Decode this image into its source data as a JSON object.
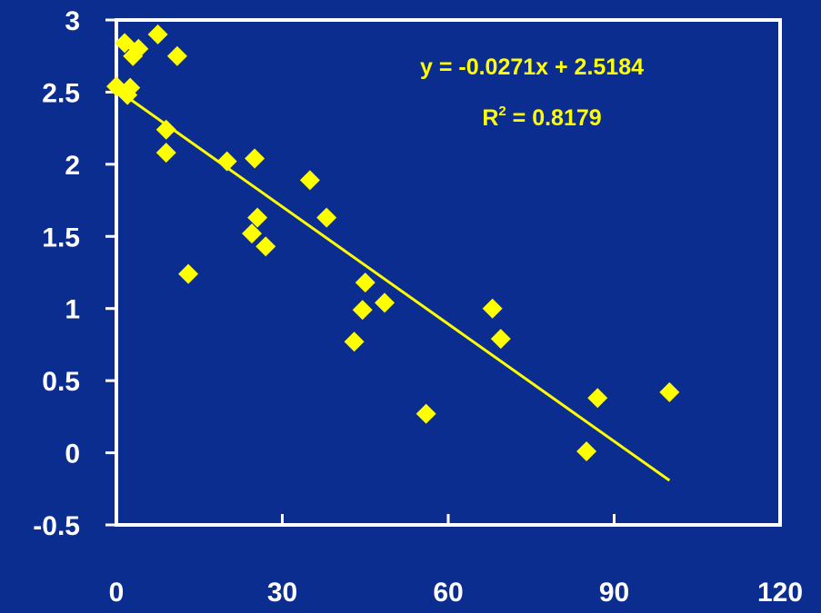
{
  "chart_data": {
    "type": "scatter",
    "title": "",
    "xlabel": "",
    "ylabel": "",
    "xlim": [
      0,
      120
    ],
    "ylim": [
      -0.5,
      3
    ],
    "x_ticks": [
      0,
      30,
      60,
      90,
      120
    ],
    "y_ticks": [
      -0.5,
      0,
      0.5,
      1,
      1.5,
      2,
      2.5,
      3
    ],
    "x_tick_labels": [
      "0",
      "30",
      "60",
      "90",
      "120"
    ],
    "y_tick_labels": [
      "-0.5",
      "0",
      "0.5",
      "1",
      "1.5",
      "2",
      "2.5",
      "3"
    ],
    "grid": false,
    "legend": "none",
    "colors": {
      "background": "#0b2d8f",
      "axes": "#ffffff",
      "points": "#ffff00",
      "trendline": "#ffff00",
      "annotation": "#ffff00",
      "tick_labels": "#ffffff"
    },
    "series": [
      {
        "x": [
          0,
          1.5,
          2,
          2.5,
          3,
          4,
          7.5,
          11,
          13,
          9,
          9,
          20,
          25,
          25.5,
          24.5,
          27,
          35,
          38,
          45,
          43,
          44.5,
          48.5,
          56,
          68,
          69.5,
          85,
          87,
          100
        ],
        "y": [
          2.54,
          2.84,
          2.48,
          2.53,
          2.75,
          2.8,
          2.9,
          2.75,
          1.24,
          2.24,
          2.08,
          2.02,
          2.04,
          1.63,
          1.52,
          1.43,
          1.89,
          1.63,
          1.18,
          0.77,
          0.99,
          1.04,
          0.27,
          1.0,
          0.79,
          0.01,
          0.38,
          0.42
        ]
      }
    ],
    "trendline": {
      "type": "linear",
      "slope": -0.0271,
      "intercept": 2.5184,
      "x_range": [
        0,
        100
      ]
    },
    "annotations": {
      "equation": "y = -0.0271x + 2.5184",
      "r2_prefix": "R",
      "r2_exponent": "2",
      "r2_suffix": " = 0.8179"
    }
  }
}
